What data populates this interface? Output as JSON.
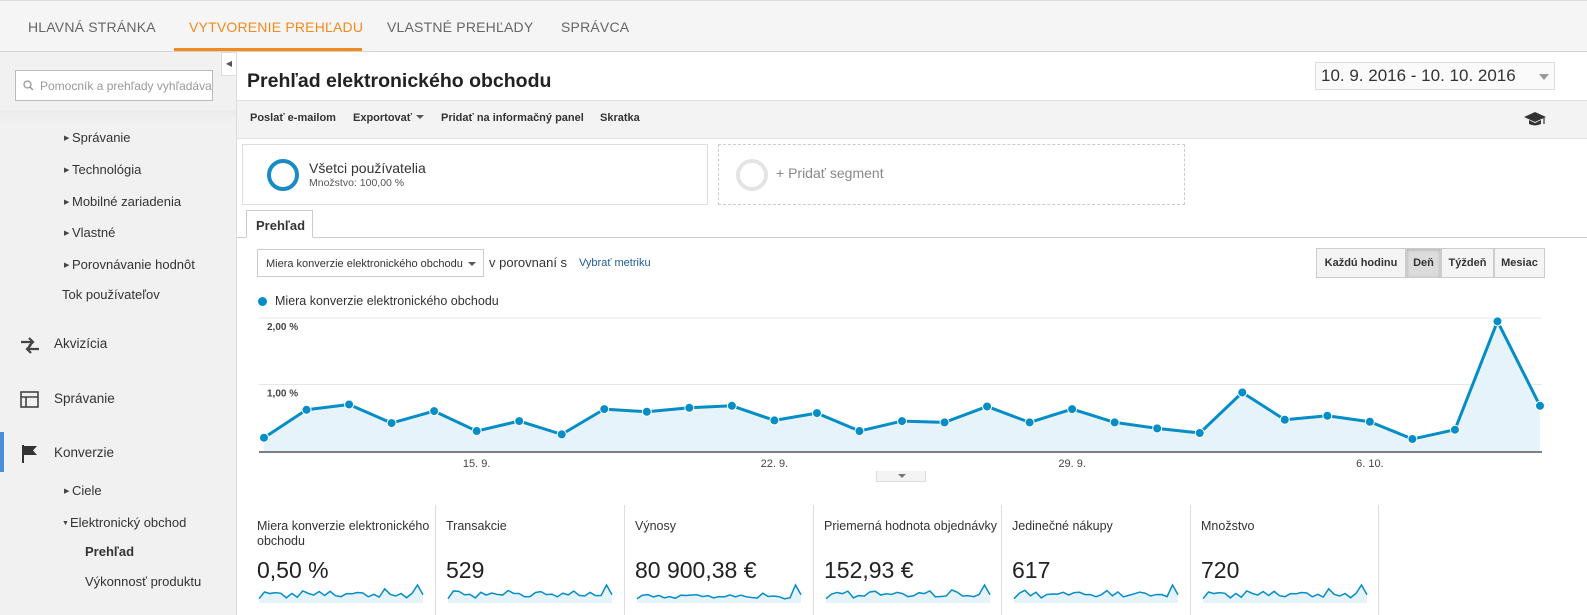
{
  "topnav": {
    "tabs": [
      {
        "label": "HLAVNÁ STRÁNKA",
        "active": false
      },
      {
        "label": "VYTVORENIE PREHĽADU",
        "active": true
      },
      {
        "label": "VLASTNÉ PREHĽADY",
        "active": false
      },
      {
        "label": "SPRÁVCA",
        "active": false
      }
    ],
    "accent_color": "#f28b1b"
  },
  "sidebar": {
    "search_placeholder": "Pomocník a prehľady vyhľadáva",
    "sub_items_top": [
      "Správanie",
      "Technológia",
      "Mobilné zariadenia",
      "Vlastné",
      "Porovnávanie hodnôt"
    ],
    "flow_item": "Tok používateľov",
    "main_items": [
      {
        "label": "Akvizícia",
        "icon": "acquisition-icon"
      },
      {
        "label": "Správanie",
        "icon": "behavior-icon"
      },
      {
        "label": "Konverzie",
        "icon": "flag-icon",
        "active": true
      }
    ],
    "conversion_items": [
      "Ciele",
      "Elektronický obchod"
    ],
    "ecommerce_items": [
      "Prehľad",
      "Výkonnosť produktu"
    ],
    "active_item": "Prehľad"
  },
  "report": {
    "title": "Prehľad elektronického obchodu",
    "date_range": "10. 9. 2016 - 10. 10. 2016"
  },
  "toolbar": {
    "email": "Poslať e-mailom",
    "export": "Exportovať",
    "dashboard": "Pridať na informačný panel",
    "shortcut": "Skratka"
  },
  "segments": {
    "all_users": "Všetci používatelia",
    "all_users_sub": "Množstvo: 100,00 %",
    "add_segment": "+ Pridať segment"
  },
  "overview_tab": "Prehľad",
  "controls": {
    "metric_select": "Miera konverzie elektronického obchodu",
    "compare_label": "v porovnaní s",
    "pick_metric": "Vybrať metriku",
    "periods": [
      "Každú hodinu",
      "Deň",
      "Týždeň",
      "Mesiac"
    ],
    "active_period": "Deň"
  },
  "chart_data": {
    "type": "area",
    "series": [
      {
        "name": "Miera konverzie elektronického obchodu",
        "color": "#058dc7",
        "values": [
          0.2,
          0.62,
          0.7,
          0.42,
          0.6,
          0.3,
          0.45,
          0.25,
          0.63,
          0.59,
          0.65,
          0.68,
          0.46,
          0.57,
          0.3,
          0.45,
          0.43,
          0.67,
          0.43,
          0.63,
          0.43,
          0.34,
          0.27,
          0.88,
          0.47,
          0.53,
          0.44,
          0.18,
          0.32,
          1.95,
          0.68
        ]
      }
    ],
    "y_ticks": [
      "1,00 %",
      "2,00 %"
    ],
    "ylim": [
      0,
      2.0
    ],
    "x_ticks": [
      "15. 9.",
      "22. 9.",
      "29. 9.",
      "6. 10."
    ],
    "x_tick_indices": [
      5,
      12,
      19,
      26
    ],
    "grid": true
  },
  "scorecards": [
    {
      "label": "Miera konverzie elektronického obchodu",
      "value": "0,50 %"
    },
    {
      "label": "Transakcie",
      "value": "529"
    },
    {
      "label": "Výnosy",
      "value": "80 900,38 €"
    },
    {
      "label": "Priemerná hodnota objednávky",
      "value": "152,93 €"
    },
    {
      "label": "Jedinečné nákupy",
      "value": "617"
    },
    {
      "label": "Množstvo",
      "value": "720"
    }
  ]
}
